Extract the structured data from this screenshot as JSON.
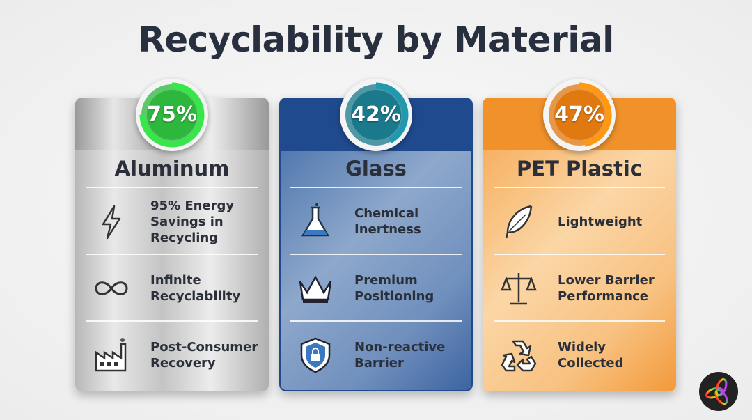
{
  "title": "Recyclability by Material",
  "cards": [
    {
      "name": "Aluminum",
      "percent": "75%",
      "value": 75,
      "color": "#2db83d",
      "items": [
        {
          "label": "95% Energy\nSavings in\nRecycling",
          "icon": "lightning-icon"
        },
        {
          "label": "Infinite\nRecyclability",
          "icon": "infinity-icon"
        },
        {
          "label": "Post-Consumer\nRecovery",
          "icon": "factory-icon"
        }
      ]
    },
    {
      "name": "Glass",
      "percent": "42%",
      "value": 42,
      "color": "#1a7a8c",
      "items": [
        {
          "label": "Chemical\nInertness",
          "icon": "flask-icon"
        },
        {
          "label": "Premium\nPositioning",
          "icon": "crown-icon"
        },
        {
          "label": "Non-reactive\nBarrier",
          "icon": "shield-lock-icon"
        }
      ]
    },
    {
      "name": "PET Plastic",
      "percent": "47%",
      "value": 47,
      "color": "#e07a10",
      "items": [
        {
          "label": "Lightweight",
          "icon": "feather-icon"
        },
        {
          "label": "Lower Barrier\nPerformance",
          "icon": "scale-icon"
        },
        {
          "label": "Widely\nCollected",
          "icon": "recycle-icon"
        }
      ]
    }
  ]
}
